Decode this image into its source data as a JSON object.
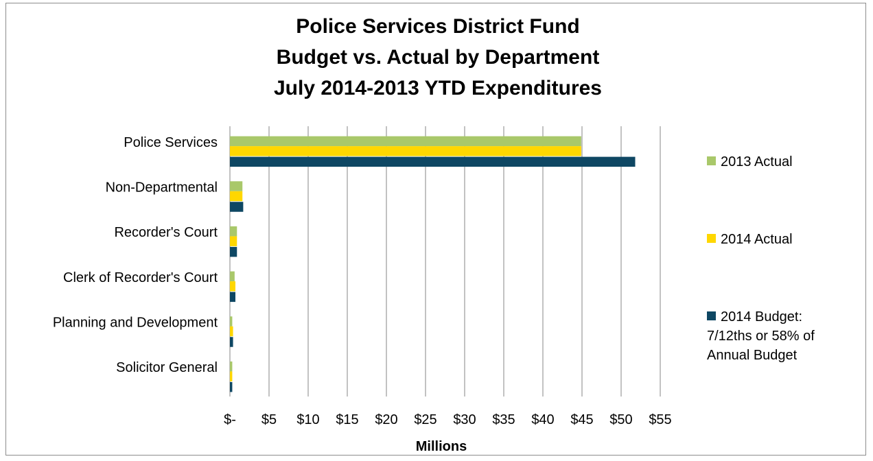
{
  "chart_data": {
    "type": "bar",
    "orientation": "horizontal",
    "title": [
      "Police Services District Fund",
      "Budget vs. Actual by Department",
      "July 2014-2013 YTD Expenditures"
    ],
    "xlabel": "Millions",
    "ylabel": "",
    "xlim": [
      0,
      55
    ],
    "x_ticks": [
      0,
      5,
      10,
      15,
      20,
      25,
      30,
      35,
      40,
      45,
      50,
      55
    ],
    "x_tick_labels": [
      "$-",
      "$5",
      "$10",
      "$15",
      "$20",
      "$25",
      "$30",
      "$35",
      "$40",
      "$45",
      "$50",
      "$55"
    ],
    "grid": "vertical major gridlines",
    "legend_position": "right",
    "categories": [
      "Police Services",
      "Non-Departmental",
      "Recorder's Court",
      "Clerk of Recorder's Court",
      "Planning and Development",
      "Solicitor General"
    ],
    "series": [
      {
        "name": "2013 Actual",
        "color": "#a9c86a",
        "values": [
          44.9,
          1.6,
          0.9,
          0.6,
          0.3,
          0.3
        ]
      },
      {
        "name": "2014 Actual",
        "color": "#ffd700",
        "values": [
          44.9,
          1.6,
          0.9,
          0.7,
          0.4,
          0.3
        ]
      },
      {
        "name": "2014 Budget: 7/12ths or 58% of Annual Budget",
        "color": "#0e4763",
        "values": [
          51.8,
          1.7,
          0.9,
          0.7,
          0.4,
          0.3
        ]
      }
    ],
    "legend_lines": [
      [
        "2013 Actual"
      ],
      [
        "2014 Actual"
      ],
      [
        "2014 Budget:",
        "7/12ths or 58% of",
        "Annual Budget"
      ]
    ]
  },
  "colors": {
    "gridline": "#868686",
    "frame_border": "#8c8c8c"
  }
}
